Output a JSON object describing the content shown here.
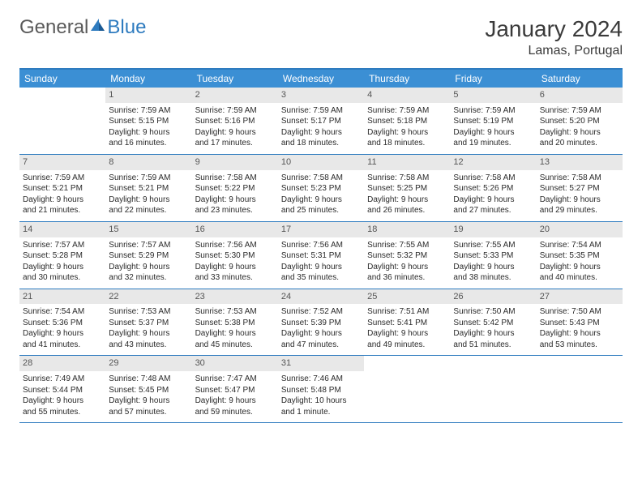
{
  "logo": {
    "part1": "General",
    "part2": "Blue"
  },
  "title": "January 2024",
  "location": "Lamas, Portugal",
  "colors": {
    "header_bg": "#3b8fd4",
    "header_text": "#ffffff",
    "rule": "#2e7bbf",
    "daynum_bg": "#e8e8e8",
    "daynum_text": "#555555",
    "body_text": "#2a2a2a",
    "logo_gray": "#5a5a5a",
    "logo_blue": "#2e7bbf"
  },
  "day_names": [
    "Sunday",
    "Monday",
    "Tuesday",
    "Wednesday",
    "Thursday",
    "Friday",
    "Saturday"
  ],
  "weeks": [
    [
      {
        "day": "",
        "lines": [
          "",
          "",
          "",
          ""
        ]
      },
      {
        "day": "1",
        "lines": [
          "Sunrise: 7:59 AM",
          "Sunset: 5:15 PM",
          "Daylight: 9 hours",
          "and 16 minutes."
        ]
      },
      {
        "day": "2",
        "lines": [
          "Sunrise: 7:59 AM",
          "Sunset: 5:16 PM",
          "Daylight: 9 hours",
          "and 17 minutes."
        ]
      },
      {
        "day": "3",
        "lines": [
          "Sunrise: 7:59 AM",
          "Sunset: 5:17 PM",
          "Daylight: 9 hours",
          "and 18 minutes."
        ]
      },
      {
        "day": "4",
        "lines": [
          "Sunrise: 7:59 AM",
          "Sunset: 5:18 PM",
          "Daylight: 9 hours",
          "and 18 minutes."
        ]
      },
      {
        "day": "5",
        "lines": [
          "Sunrise: 7:59 AM",
          "Sunset: 5:19 PM",
          "Daylight: 9 hours",
          "and 19 minutes."
        ]
      },
      {
        "day": "6",
        "lines": [
          "Sunrise: 7:59 AM",
          "Sunset: 5:20 PM",
          "Daylight: 9 hours",
          "and 20 minutes."
        ]
      }
    ],
    [
      {
        "day": "7",
        "lines": [
          "Sunrise: 7:59 AM",
          "Sunset: 5:21 PM",
          "Daylight: 9 hours",
          "and 21 minutes."
        ]
      },
      {
        "day": "8",
        "lines": [
          "Sunrise: 7:59 AM",
          "Sunset: 5:21 PM",
          "Daylight: 9 hours",
          "and 22 minutes."
        ]
      },
      {
        "day": "9",
        "lines": [
          "Sunrise: 7:58 AM",
          "Sunset: 5:22 PM",
          "Daylight: 9 hours",
          "and 23 minutes."
        ]
      },
      {
        "day": "10",
        "lines": [
          "Sunrise: 7:58 AM",
          "Sunset: 5:23 PM",
          "Daylight: 9 hours",
          "and 25 minutes."
        ]
      },
      {
        "day": "11",
        "lines": [
          "Sunrise: 7:58 AM",
          "Sunset: 5:25 PM",
          "Daylight: 9 hours",
          "and 26 minutes."
        ]
      },
      {
        "day": "12",
        "lines": [
          "Sunrise: 7:58 AM",
          "Sunset: 5:26 PM",
          "Daylight: 9 hours",
          "and 27 minutes."
        ]
      },
      {
        "day": "13",
        "lines": [
          "Sunrise: 7:58 AM",
          "Sunset: 5:27 PM",
          "Daylight: 9 hours",
          "and 29 minutes."
        ]
      }
    ],
    [
      {
        "day": "14",
        "lines": [
          "Sunrise: 7:57 AM",
          "Sunset: 5:28 PM",
          "Daylight: 9 hours",
          "and 30 minutes."
        ]
      },
      {
        "day": "15",
        "lines": [
          "Sunrise: 7:57 AM",
          "Sunset: 5:29 PM",
          "Daylight: 9 hours",
          "and 32 minutes."
        ]
      },
      {
        "day": "16",
        "lines": [
          "Sunrise: 7:56 AM",
          "Sunset: 5:30 PM",
          "Daylight: 9 hours",
          "and 33 minutes."
        ]
      },
      {
        "day": "17",
        "lines": [
          "Sunrise: 7:56 AM",
          "Sunset: 5:31 PM",
          "Daylight: 9 hours",
          "and 35 minutes."
        ]
      },
      {
        "day": "18",
        "lines": [
          "Sunrise: 7:55 AM",
          "Sunset: 5:32 PM",
          "Daylight: 9 hours",
          "and 36 minutes."
        ]
      },
      {
        "day": "19",
        "lines": [
          "Sunrise: 7:55 AM",
          "Sunset: 5:33 PM",
          "Daylight: 9 hours",
          "and 38 minutes."
        ]
      },
      {
        "day": "20",
        "lines": [
          "Sunrise: 7:54 AM",
          "Sunset: 5:35 PM",
          "Daylight: 9 hours",
          "and 40 minutes."
        ]
      }
    ],
    [
      {
        "day": "21",
        "lines": [
          "Sunrise: 7:54 AM",
          "Sunset: 5:36 PM",
          "Daylight: 9 hours",
          "and 41 minutes."
        ]
      },
      {
        "day": "22",
        "lines": [
          "Sunrise: 7:53 AM",
          "Sunset: 5:37 PM",
          "Daylight: 9 hours",
          "and 43 minutes."
        ]
      },
      {
        "day": "23",
        "lines": [
          "Sunrise: 7:53 AM",
          "Sunset: 5:38 PM",
          "Daylight: 9 hours",
          "and 45 minutes."
        ]
      },
      {
        "day": "24",
        "lines": [
          "Sunrise: 7:52 AM",
          "Sunset: 5:39 PM",
          "Daylight: 9 hours",
          "and 47 minutes."
        ]
      },
      {
        "day": "25",
        "lines": [
          "Sunrise: 7:51 AM",
          "Sunset: 5:41 PM",
          "Daylight: 9 hours",
          "and 49 minutes."
        ]
      },
      {
        "day": "26",
        "lines": [
          "Sunrise: 7:50 AM",
          "Sunset: 5:42 PM",
          "Daylight: 9 hours",
          "and 51 minutes."
        ]
      },
      {
        "day": "27",
        "lines": [
          "Sunrise: 7:50 AM",
          "Sunset: 5:43 PM",
          "Daylight: 9 hours",
          "and 53 minutes."
        ]
      }
    ],
    [
      {
        "day": "28",
        "lines": [
          "Sunrise: 7:49 AM",
          "Sunset: 5:44 PM",
          "Daylight: 9 hours",
          "and 55 minutes."
        ]
      },
      {
        "day": "29",
        "lines": [
          "Sunrise: 7:48 AM",
          "Sunset: 5:45 PM",
          "Daylight: 9 hours",
          "and 57 minutes."
        ]
      },
      {
        "day": "30",
        "lines": [
          "Sunrise: 7:47 AM",
          "Sunset: 5:47 PM",
          "Daylight: 9 hours",
          "and 59 minutes."
        ]
      },
      {
        "day": "31",
        "lines": [
          "Sunrise: 7:46 AM",
          "Sunset: 5:48 PM",
          "Daylight: 10 hours",
          "and 1 minute."
        ]
      },
      {
        "day": "",
        "lines": [
          "",
          "",
          "",
          ""
        ]
      },
      {
        "day": "",
        "lines": [
          "",
          "",
          "",
          ""
        ]
      },
      {
        "day": "",
        "lines": [
          "",
          "",
          "",
          ""
        ]
      }
    ]
  ]
}
